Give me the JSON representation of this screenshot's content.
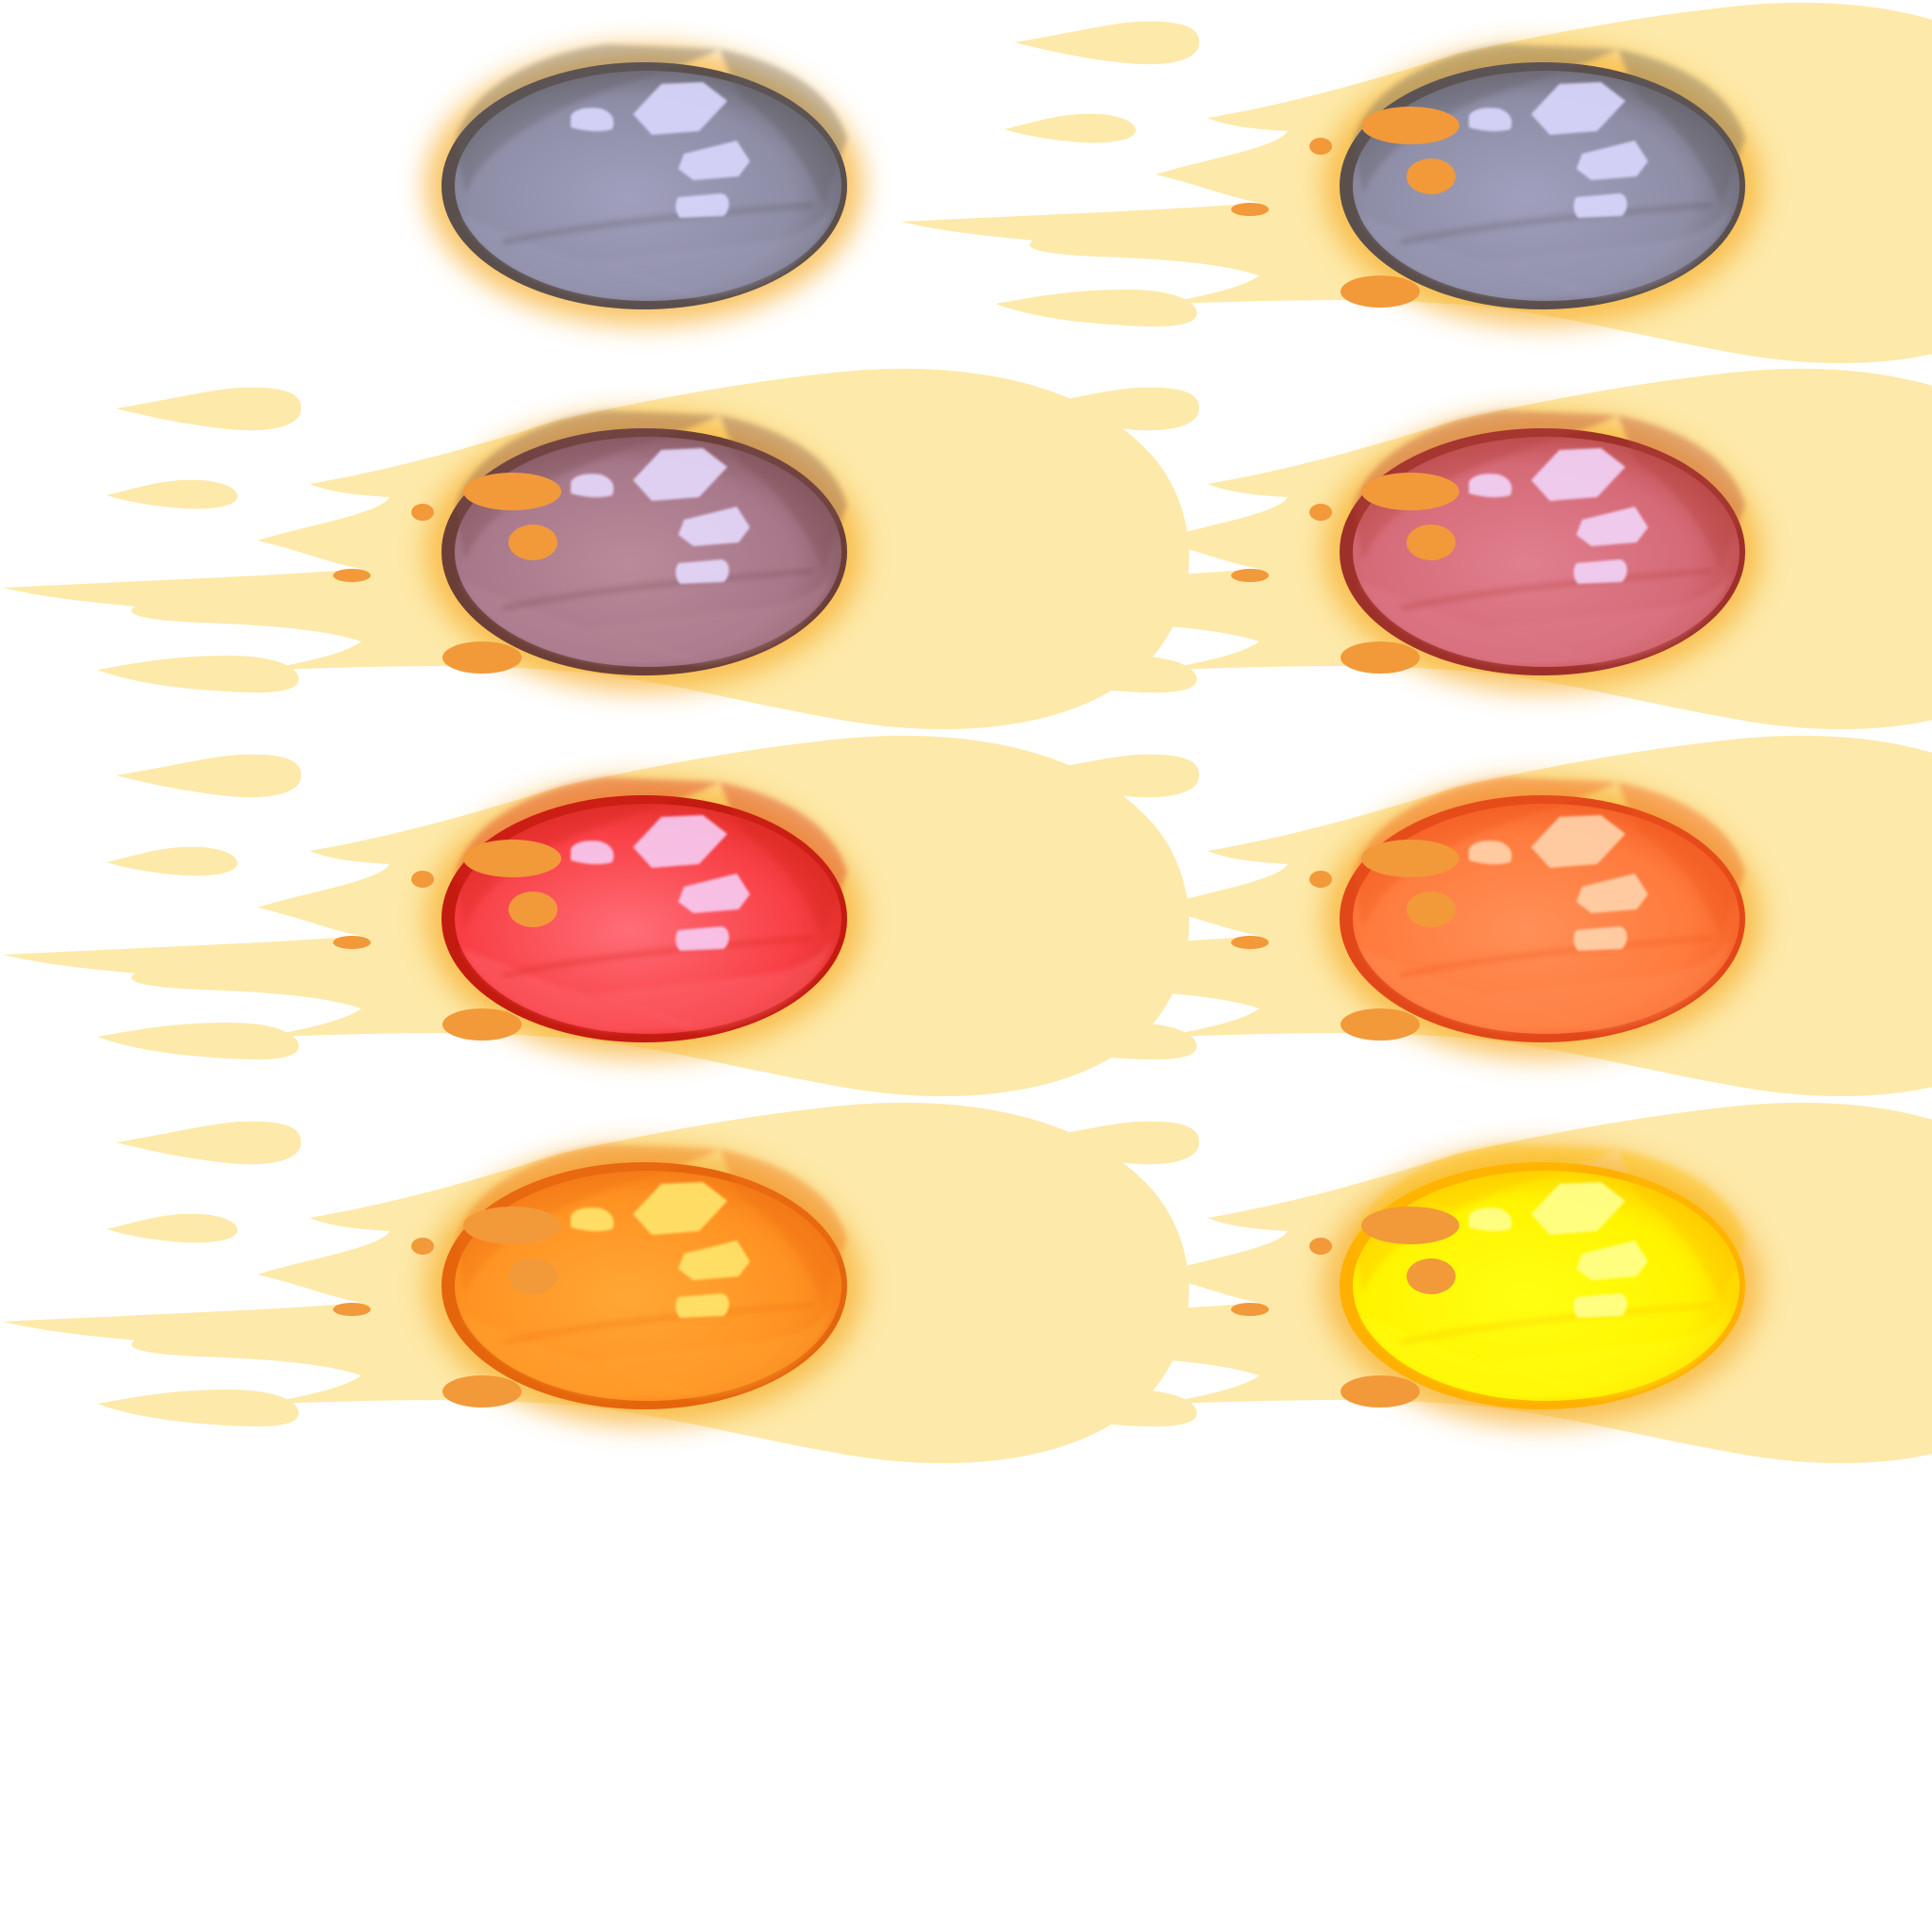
{
  "sprite_sheet": {
    "background": "#ffffff",
    "trail_color": "#fde9a9",
    "ember_color": "#f2993a",
    "glow_color": "#f7b032",
    "sprites": [
      {
        "name": "gray-meteor-static",
        "trail": false,
        "color_light": "#a09fbd",
        "color_mid": "#8e8da6",
        "color_dark": "#615e63",
        "rim": "#5a4f4c",
        "highlight": "#d8d6fb"
      },
      {
        "name": "gray-meteor-flying",
        "trail": true,
        "color_light": "#a09fbd",
        "color_mid": "#8e8da6",
        "color_dark": "#615e63",
        "rim": "#5a4f4c",
        "highlight": "#d8d6fb"
      },
      {
        "name": "mauve-meteor-flying",
        "trail": true,
        "color_light": "#bb8a9a",
        "color_mid": "#a6788a",
        "color_dark": "#7d4f55",
        "rim": "#6b3f38",
        "highlight": "#e4d8fb"
      },
      {
        "name": "rose-meteor-flying",
        "trail": true,
        "color_light": "#e07f8f",
        "color_mid": "#d56a77",
        "color_dark": "#b5423c",
        "rim": "#9e302a",
        "highlight": "#f1d2f6"
      },
      {
        "name": "red-meteor-flying",
        "trail": true,
        "color_light": "#ff6d77",
        "color_mid": "#f84046",
        "color_dark": "#d8261c",
        "rim": "#c41b10",
        "highlight": "#f7c9f0"
      },
      {
        "name": "coral-meteor-flying",
        "trail": true,
        "color_light": "#ff9057",
        "color_mid": "#ff7a3d",
        "color_dark": "#f0561d",
        "rim": "#e2471a",
        "highlight": "#ffd1a8"
      },
      {
        "name": "orange-meteor-flying",
        "trail": true,
        "color_light": "#ffa735",
        "color_mid": "#ff9322",
        "color_dark": "#f07112",
        "rim": "#e5650c",
        "highlight": "#ffe46a"
      },
      {
        "name": "yellow-meteor-flying",
        "trail": true,
        "color_light": "#ffff12",
        "color_mid": "#fff400",
        "color_dark": "#ffc100",
        "rim": "#ffb000",
        "highlight": "#ffff8a"
      }
    ]
  }
}
